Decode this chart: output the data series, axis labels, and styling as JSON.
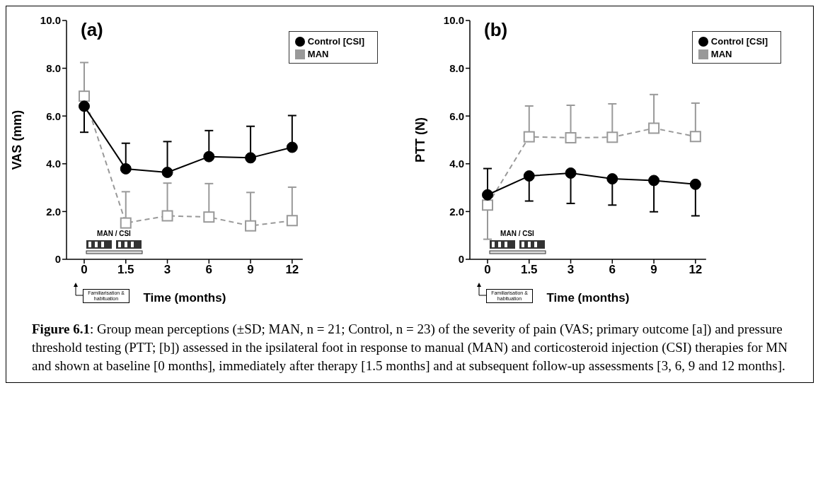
{
  "chart_data": [
    {
      "type": "line",
      "title": "(a)",
      "xlabel": "Time (months)",
      "ylabel": "VAS (mm)",
      "categories": [
        "0",
        "1.5",
        "3",
        "6",
        "9",
        "12"
      ],
      "ylim": [
        0,
        10
      ],
      "yticks": [
        0,
        {
          "value": 2,
          "label": "2.0"
        },
        {
          "value": 4,
          "label": "4.0"
        },
        {
          "value": 6,
          "label": "6.0"
        },
        {
          "value": 8,
          "label": "8.0"
        },
        {
          "value": 10,
          "label": "10.0"
        }
      ],
      "grid": false,
      "legend": "top right",
      "series": [
        {
          "name": "MAN",
          "color": "#999999",
          "marker": "square",
          "line_style": "dashed",
          "values": [
            6.83,
            1.52,
            1.82,
            1.77,
            1.4,
            1.62
          ],
          "errors": [
            [
              6.83,
              8.24
            ],
            [
              1.52,
              2.83
            ],
            [
              1.82,
              3.19
            ],
            [
              1.77,
              3.17
            ],
            [
              1.4,
              2.8
            ],
            [
              1.62,
              3.02
            ]
          ]
        },
        {
          "name": "Control [CSI]",
          "color": "#000000",
          "marker": "circle",
          "line_style": "solid",
          "values": [
            6.41,
            3.79,
            3.64,
            4.3,
            4.25,
            4.69
          ],
          "errors": [
            [
              5.32,
              6.41
            ],
            [
              3.79,
              4.86
            ],
            [
              3.64,
              4.93
            ],
            [
              4.3,
              5.39
            ],
            [
              4.25,
              5.57
            ],
            [
              4.69,
              6.02
            ]
          ]
        }
      ],
      "annotations": [
        "MAN / CSI",
        "Familiarisation & habituation",
        "Figure 6.1: Group mean perceptions (±SD; MAN, n = 21; Control, n = 23) of the severity of pain (VAS; primary outcome [a]) and pressure threshold testing (PTT; [b]) assessed in the ipsilateral foot in response to manual (MAN) and corticosteroid injection (CSI) therapies for MN and shown at baseline [0 months], immediately after therapy [1.5 months] and at subsequent follow-up assessments [3, 6, 9 and 12 months]."
      ]
    },
    {
      "type": "line",
      "title": "(b)",
      "xlabel": "Time (months)",
      "ylabel": "PTT (N)",
      "categories": [
        "0",
        "1.5",
        "3",
        "6",
        "9",
        "12"
      ],
      "ylim": [
        0,
        10
      ],
      "yticks": [
        0,
        {
          "value": 2,
          "label": "2.0"
        },
        {
          "value": 4,
          "label": "4.0"
        },
        {
          "value": 6,
          "label": "6.0"
        },
        {
          "value": 8,
          "label": "8.0"
        },
        {
          "value": 10,
          "label": "10.0"
        }
      ],
      "grid": false,
      "legend": "top right",
      "series": [
        {
          "name": "MAN",
          "color": "#999999",
          "marker": "square",
          "line_style": "dashed",
          "values": [
            2.27,
            5.13,
            5.09,
            5.11,
            5.49,
            5.14
          ],
          "errors": [
            [
              0.84,
              2.27
            ],
            [
              5.13,
              6.42
            ],
            [
              5.09,
              6.45
            ],
            [
              5.11,
              6.51
            ],
            [
              5.49,
              6.9
            ],
            [
              5.14,
              6.54
            ]
          ]
        },
        {
          "name": "Control [CSI]",
          "color": "#000000",
          "marker": "circle",
          "line_style": "solid",
          "values": [
            2.7,
            3.49,
            3.61,
            3.37,
            3.3,
            3.14
          ],
          "errors": [
            [
              2.7,
              3.8
            ],
            [
              2.44,
              3.49
            ],
            [
              2.34,
              3.61
            ],
            [
              2.27,
              3.37
            ],
            [
              1.99,
              3.3
            ],
            [
              1.82,
              3.14
            ]
          ]
        }
      ],
      "annotations": [
        "MAN / CSI",
        "Familiarisation & habituation"
      ]
    }
  ]
}
